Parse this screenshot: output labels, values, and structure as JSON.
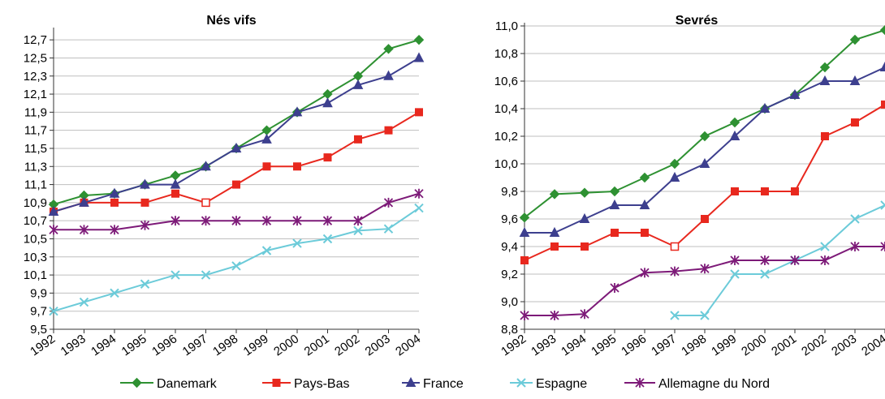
{
  "colors": {
    "Danemark": "#2e9132",
    "Pays-Bas": "#e8281e",
    "France": "#3d3f8e",
    "Espagne": "#6ccbd9",
    "Allemagne du Nord": "#7d1a78",
    "grid": "#bfbfbf",
    "axis": "#333333"
  },
  "legend": {
    "placement": "bottom",
    "items": [
      {
        "name": "Danemark",
        "marker": "diamond"
      },
      {
        "name": "Pays-Bas",
        "marker": "square"
      },
      {
        "name": "France",
        "marker": "triangle"
      },
      {
        "name": "Espagne",
        "marker": "x"
      },
      {
        "name": "Allemagne du Nord",
        "marker": "star"
      }
    ]
  },
  "chart_data": [
    {
      "type": "line",
      "title": "Nés vifs",
      "xlabel": "",
      "ylabel": "",
      "grid": true,
      "x": [
        "1992",
        "1993",
        "1994",
        "1995",
        "1996",
        "1997",
        "1998",
        "1999",
        "2000",
        "2001",
        "2002",
        "2003",
        "2004"
      ],
      "ylim": [
        9.5,
        12.8
      ],
      "yticks": [
        "9,5",
        "9,7",
        "9,9",
        "10,1",
        "10,3",
        "10,5",
        "10,7",
        "10,9",
        "11,1",
        "11,3",
        "11,5",
        "11,7",
        "11,9",
        "12,1",
        "12,3",
        "12,5",
        "12,7"
      ],
      "series": [
        {
          "name": "Danemark",
          "values": [
            10.88,
            10.98,
            11.0,
            11.1,
            11.2,
            11.3,
            11.5,
            11.7,
            11.9,
            12.1,
            12.3,
            12.6,
            12.7
          ]
        },
        {
          "name": "Pays-Bas",
          "values": [
            10.8,
            10.9,
            10.9,
            10.9,
            11.0,
            10.9,
            11.1,
            11.3,
            11.3,
            11.4,
            11.6,
            11.7,
            11.9
          ],
          "hollow_index": 5
        },
        {
          "name": "France",
          "values": [
            10.8,
            10.9,
            11.0,
            11.1,
            11.1,
            11.3,
            11.5,
            11.6,
            11.9,
            12.0,
            12.2,
            12.3,
            12.5
          ]
        },
        {
          "name": "Espagne",
          "values": [
            9.7,
            9.8,
            9.9,
            10.0,
            10.1,
            10.1,
            10.2,
            10.37,
            10.45,
            10.5,
            10.59,
            10.61,
            10.84
          ]
        },
        {
          "name": "Allemagne du Nord",
          "values": [
            10.6,
            10.6,
            10.6,
            10.65,
            10.7,
            10.7,
            10.7,
            10.7,
            10.7,
            10.7,
            10.7,
            10.9,
            11.0
          ]
        }
      ]
    },
    {
      "type": "line",
      "title": "Sevrés",
      "xlabel": "",
      "ylabel": "",
      "grid": true,
      "x": [
        "1992",
        "1993",
        "1994",
        "1995",
        "1996",
        "1997",
        "1998",
        "1999",
        "2000",
        "2001",
        "2002",
        "2003",
        "2004"
      ],
      "ylim": [
        8.8,
        11.0
      ],
      "yticks": [
        "8,8",
        "9,0",
        "9,2",
        "9,4",
        "9,6",
        "9,8",
        "10,0",
        "10,2",
        "10,4",
        "10,6",
        "10,8",
        "11,0"
      ],
      "series": [
        {
          "name": "Danemark",
          "values": [
            9.61,
            9.78,
            9.79,
            9.8,
            9.9,
            10.0,
            10.2,
            10.3,
            10.4,
            10.5,
            10.7,
            10.9,
            10.97
          ]
        },
        {
          "name": "Pays-Bas",
          "values": [
            9.3,
            9.4,
            9.4,
            9.5,
            9.5,
            9.4,
            9.6,
            9.8,
            9.8,
            9.8,
            10.2,
            10.3,
            10.43
          ],
          "hollow_index": 5
        },
        {
          "name": "France",
          "values": [
            9.5,
            9.5,
            9.6,
            9.7,
            9.7,
            9.9,
            10.0,
            10.2,
            10.4,
            10.5,
            10.6,
            10.6,
            10.7
          ]
        },
        {
          "name": "Espagne",
          "values": [
            null,
            null,
            null,
            null,
            null,
            8.9,
            8.9,
            9.2,
            9.2,
            9.3,
            9.4,
            9.6,
            9.7
          ]
        },
        {
          "name": "Allemagne du Nord",
          "values": [
            8.9,
            8.9,
            8.91,
            9.1,
            9.21,
            9.22,
            9.24,
            9.3,
            9.3,
            9.3,
            9.3,
            9.4,
            9.4
          ]
        }
      ]
    }
  ]
}
